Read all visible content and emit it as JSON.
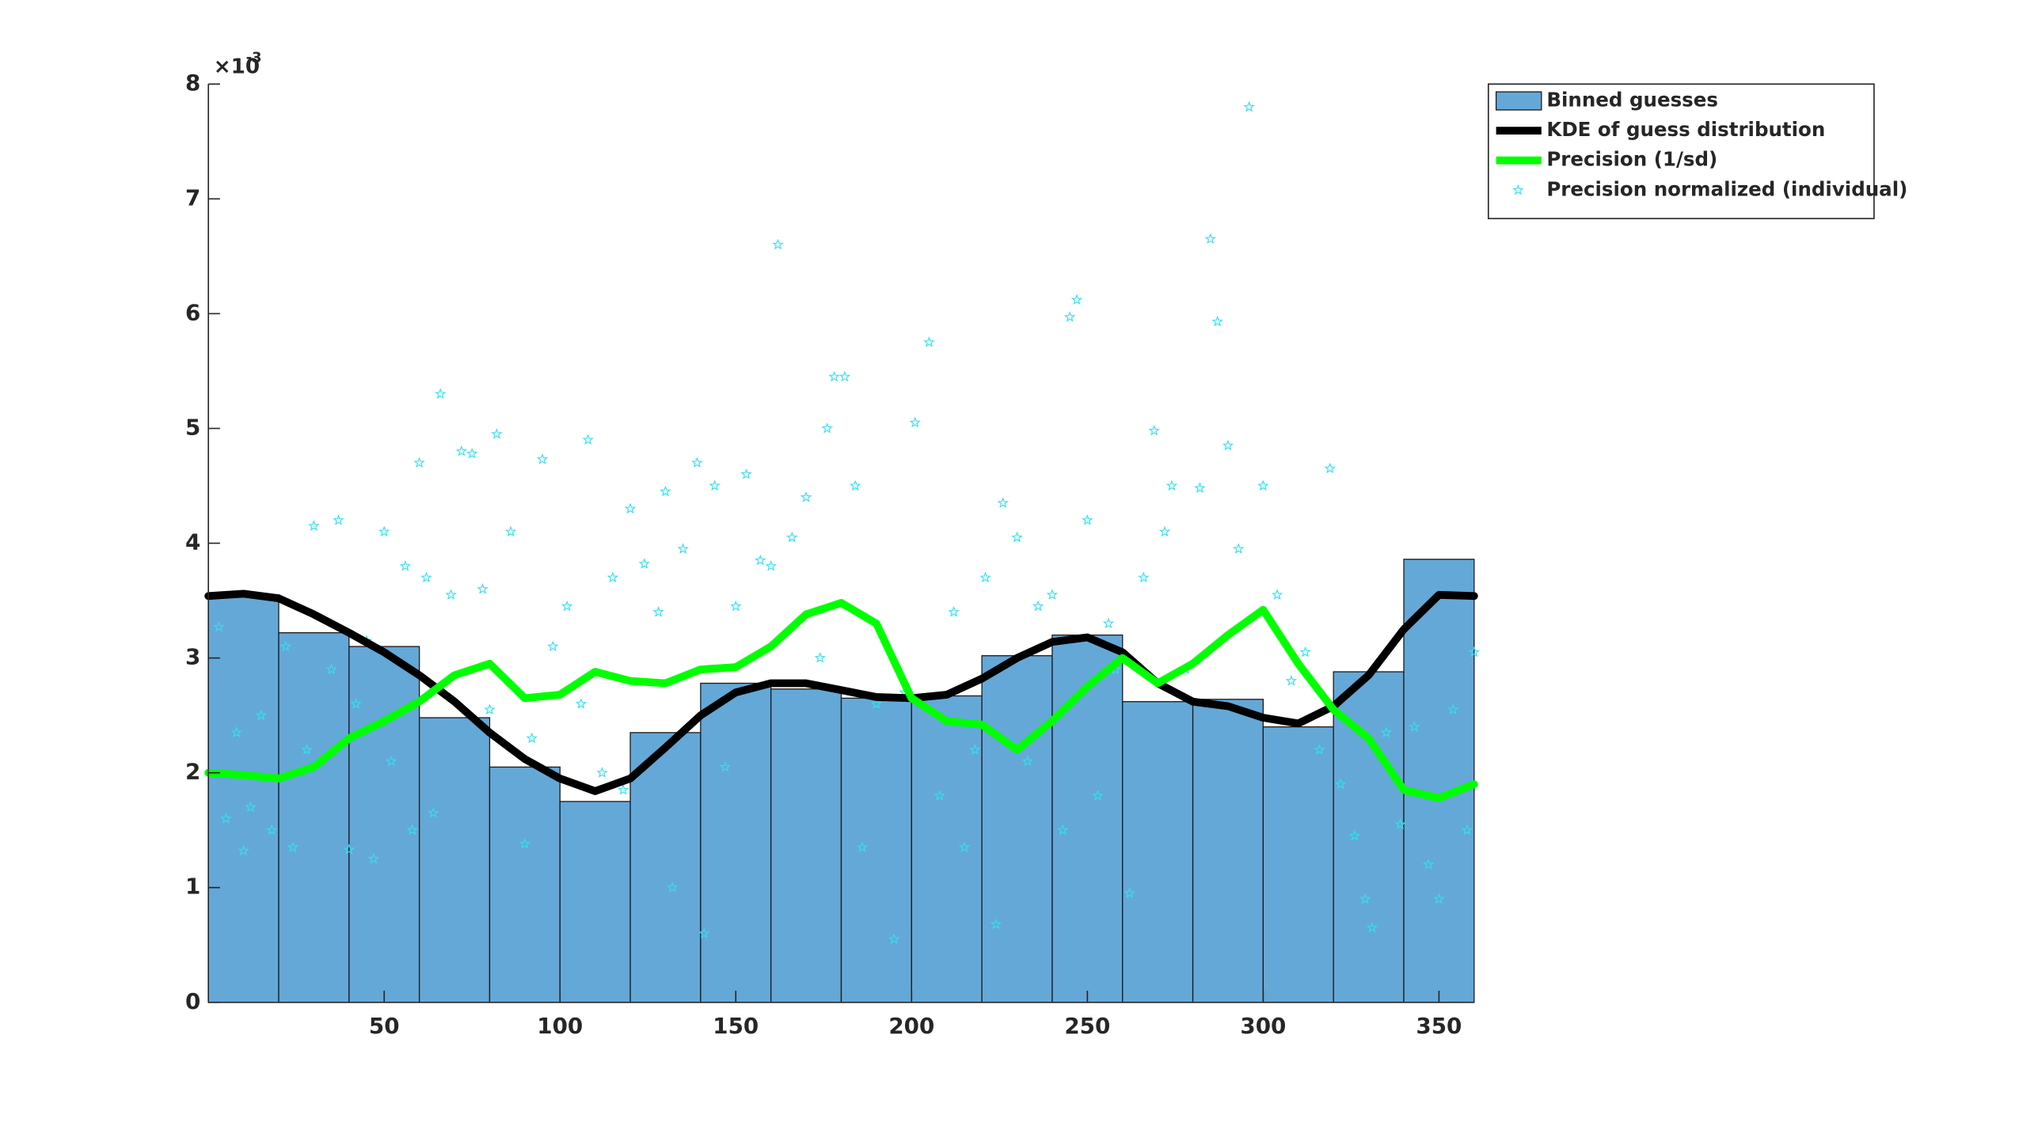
{
  "chart_data": {
    "type": "histogram",
    "y_exponent_label": "×10",
    "y_exponent": "-3",
    "xlim": [
      0,
      360
    ],
    "ylim": [
      0,
      8
    ],
    "xticks": [
      50,
      100,
      150,
      200,
      250,
      300,
      350
    ],
    "yticks": [
      0,
      1,
      2,
      3,
      4,
      5,
      6,
      7,
      8
    ],
    "grid": false,
    "legend": "top-right-outside",
    "histogram": {
      "name": "Binned guesses",
      "color": "#64a8d8",
      "bins": [
        0,
        20,
        40,
        60,
        80,
        100,
        120,
        140,
        160,
        180,
        200,
        220,
        240,
        260,
        280,
        300,
        320,
        340,
        360
      ],
      "counts": [
        3.55,
        3.22,
        3.1,
        2.48,
        2.05,
        1.75,
        2.35,
        2.78,
        2.73,
        2.65,
        2.67,
        3.02,
        3.2,
        2.62,
        2.64,
        2.4,
        2.88,
        3.86
      ]
    },
    "series": [
      {
        "name": "KDE of guess distribution",
        "color": "#000000",
        "type": "line",
        "x": [
          0,
          10,
          20,
          30,
          40,
          50,
          60,
          70,
          80,
          90,
          100,
          110,
          120,
          130,
          140,
          150,
          160,
          170,
          180,
          190,
          200,
          210,
          220,
          230,
          240,
          250,
          260,
          270,
          280,
          290,
          300,
          310,
          320,
          330,
          340,
          350,
          360
        ],
        "values": [
          3.54,
          3.56,
          3.52,
          3.38,
          3.22,
          3.05,
          2.85,
          2.62,
          2.35,
          2.12,
          1.95,
          1.84,
          1.95,
          2.22,
          2.5,
          2.7,
          2.78,
          2.78,
          2.72,
          2.66,
          2.65,
          2.68,
          2.82,
          3.0,
          3.14,
          3.18,
          3.05,
          2.78,
          2.62,
          2.58,
          2.48,
          2.43,
          2.58,
          2.85,
          3.25,
          3.55,
          3.54
        ]
      },
      {
        "name": "Precision (1/sd)",
        "color": "#00ff00",
        "type": "line",
        "x": [
          0,
          10,
          20,
          30,
          40,
          50,
          60,
          70,
          80,
          90,
          100,
          110,
          120,
          130,
          140,
          150,
          160,
          170,
          180,
          190,
          200,
          210,
          220,
          230,
          240,
          250,
          260,
          270,
          280,
          290,
          300,
          310,
          320,
          330,
          340,
          350,
          360
        ],
        "values": [
          2.0,
          1.98,
          1.95,
          2.05,
          2.3,
          2.45,
          2.62,
          2.85,
          2.95,
          2.65,
          2.68,
          2.88,
          2.8,
          2.78,
          2.9,
          2.92,
          3.1,
          3.38,
          3.48,
          3.3,
          2.65,
          2.45,
          2.42,
          2.2,
          2.45,
          2.75,
          3.0,
          2.78,
          2.95,
          3.2,
          3.42,
          2.95,
          2.55,
          2.3,
          1.85,
          1.78,
          1.9
        ]
      },
      {
        "name": "Precision normalized (individual)",
        "color": "#33e0f0",
        "type": "scatter",
        "x": [
          3,
          5,
          8,
          10,
          12,
          15,
          18,
          22,
          24,
          28,
          30,
          35,
          37,
          40,
          42,
          45,
          47,
          50,
          52,
          56,
          58,
          60,
          62,
          64,
          66,
          69,
          72,
          75,
          78,
          80,
          82,
          86,
          90,
          92,
          95,
          98,
          102,
          106,
          108,
          112,
          115,
          118,
          120,
          124,
          128,
          130,
          132,
          135,
          139,
          141,
          144,
          147,
          150,
          153,
          157,
          160,
          162,
          166,
          170,
          174,
          176,
          178,
          181,
          184,
          186,
          190,
          195,
          198,
          201,
          205,
          208,
          212,
          215,
          218,
          221,
          224,
          226,
          230,
          233,
          236,
          240,
          243,
          245,
          247,
          250,
          253,
          256,
          258,
          262,
          266,
          269,
          272,
          274,
          278,
          282,
          285,
          287,
          290,
          293,
          296,
          300,
          304,
          308,
          312,
          316,
          319,
          322,
          326,
          329,
          331,
          335,
          339,
          343,
          347,
          350,
          354,
          358,
          360
        ],
        "values": [
          3.27,
          1.6,
          2.35,
          1.32,
          1.7,
          2.5,
          1.5,
          3.1,
          1.35,
          2.2,
          4.15,
          2.9,
          4.2,
          1.33,
          2.6,
          3.15,
          1.25,
          4.1,
          2.1,
          3.8,
          1.5,
          4.7,
          3.7,
          1.65,
          5.3,
          3.55,
          4.8,
          4.78,
          3.6,
          2.55,
          4.95,
          4.1,
          1.38,
          2.3,
          4.73,
          3.1,
          3.45,
          2.6,
          4.9,
          2.0,
          3.7,
          1.85,
          4.3,
          3.82,
          3.4,
          4.45,
          1.0,
          3.95,
          4.7,
          0.6,
          4.5,
          2.05,
          3.45,
          4.6,
          3.85,
          3.8,
          6.6,
          4.05,
          4.4,
          3.0,
          5.0,
          5.45,
          5.45,
          4.5,
          1.35,
          2.6,
          0.55,
          2.7,
          5.05,
          5.75,
          1.8,
          3.4,
          1.35,
          2.2,
          3.7,
          0.68,
          4.35,
          4.05,
          2.1,
          3.45,
          3.55,
          1.5,
          5.97,
          6.12,
          4.2,
          1.8,
          3.3,
          2.9,
          0.95,
          3.7,
          4.98,
          4.1,
          4.5,
          2.9,
          4.48,
          6.65,
          5.93,
          4.85,
          3.95,
          7.8,
          4.5,
          3.55,
          2.8,
          3.05,
          2.2,
          4.65,
          1.9,
          1.45,
          0.9,
          0.65,
          2.35,
          1.55,
          2.4,
          1.2,
          0.9,
          2.55,
          1.5,
          3.05
        ]
      }
    ]
  }
}
